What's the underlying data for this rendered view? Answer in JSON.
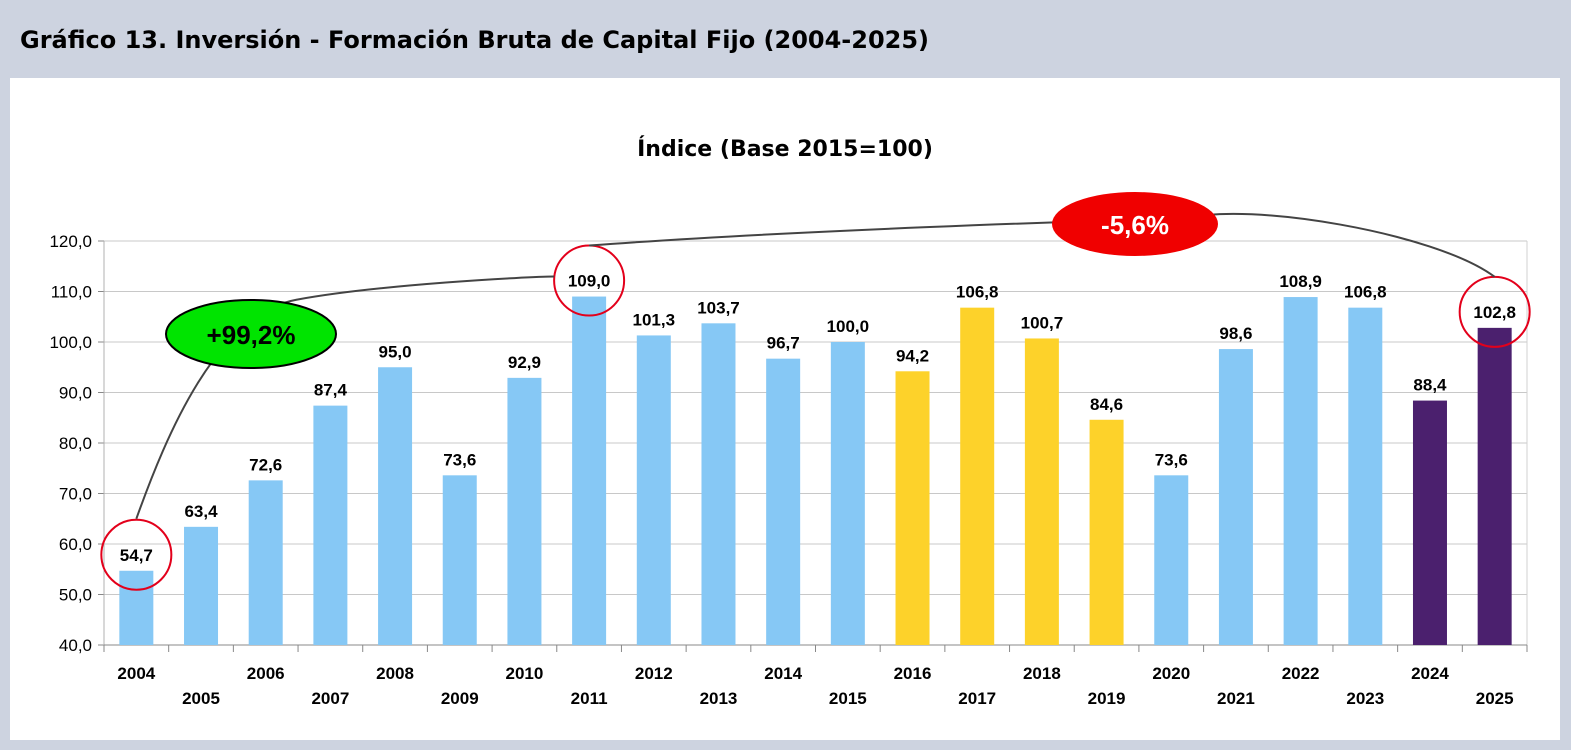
{
  "header": {
    "title": "Gráfico 13. Inversión - Formación Bruta de Capital Fijo (2004-2025)"
  },
  "colors": {
    "light_blue": "#86c8f5",
    "yellow": "#fdd22a",
    "purple": "#4b206e",
    "grid": "#c8c8c8",
    "circle": "#e3001b",
    "green": "#00e400",
    "red": "#f00000"
  },
  "annotations": {
    "growth": "+99,2%",
    "decline": "-5,6%"
  },
  "chart_data": {
    "type": "bar",
    "title": "Índice (Base 2015=100)",
    "xlabel": "",
    "ylabel": "",
    "ylim": [
      40,
      120
    ],
    "yticks": [
      "40,0",
      "50,0",
      "60,0",
      "70,0",
      "80,0",
      "90,0",
      "100,0",
      "110,0",
      "120,0"
    ],
    "grid": true,
    "categories": [
      "2004",
      "2005",
      "2006",
      "2007",
      "2008",
      "2009",
      "2010",
      "2011",
      "2012",
      "2013",
      "2014",
      "2015",
      "2016",
      "2017",
      "2018",
      "2019",
      "2020",
      "2021",
      "2022",
      "2023",
      "2024",
      "2025"
    ],
    "values": [
      54.7,
      63.4,
      72.6,
      87.4,
      95.0,
      73.6,
      92.9,
      109.0,
      101.3,
      103.7,
      96.7,
      100.0,
      94.2,
      106.8,
      100.7,
      84.6,
      73.6,
      98.6,
      108.9,
      106.8,
      88.4,
      102.8
    ],
    "labels": [
      "54,7",
      "63,4",
      "72,6",
      "87,4",
      "95,0",
      "73,6",
      "92,9",
      "109,0",
      "101,3",
      "103,7",
      "96,7",
      "100,0",
      "94,2",
      "106,8",
      "100,7",
      "84,6",
      "73,6",
      "98,6",
      "108,9",
      "106,8",
      "88,4",
      "102,8"
    ],
    "bar_groups": [
      "blue",
      "blue",
      "blue",
      "blue",
      "blue",
      "blue",
      "blue",
      "blue",
      "blue",
      "blue",
      "blue",
      "blue",
      "yellow",
      "yellow",
      "yellow",
      "yellow",
      "blue",
      "blue",
      "blue",
      "blue",
      "purple",
      "purple"
    ],
    "highlighted": [
      "2004",
      "2011",
      "2025"
    ]
  }
}
